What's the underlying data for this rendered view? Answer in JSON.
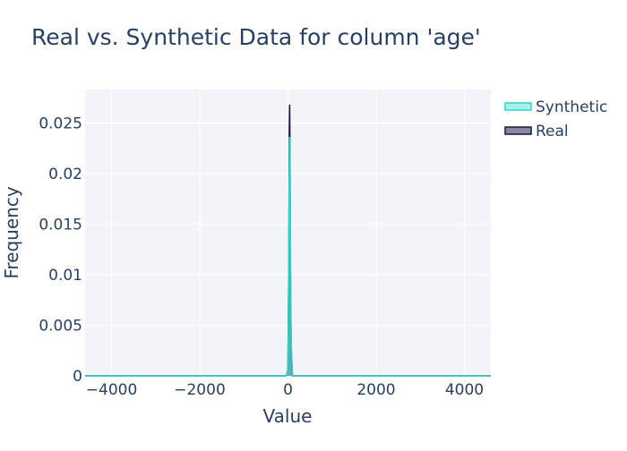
{
  "chart_data": {
    "type": "area",
    "title": "Real vs. Synthetic Data for column 'age'",
    "xlabel": "Value",
    "ylabel": "Frequency",
    "xlim": [
      -4600,
      4600
    ],
    "ylim": [
      0,
      0.0283
    ],
    "x_ticks": [
      -4000,
      -2000,
      0,
      2000,
      4000
    ],
    "x_tick_labels": [
      "−4000",
      "−2000",
      "0",
      "2000",
      "4000"
    ],
    "y_ticks": [
      0,
      0.005,
      0.01,
      0.015,
      0.02,
      0.025
    ],
    "y_tick_labels": [
      "0",
      "0.005",
      "0.01",
      "0.015",
      "0.02",
      "0.025"
    ],
    "grid": true,
    "legend_position": "top-right",
    "series": [
      {
        "name": "Real",
        "color": "#1a1447",
        "fill": "rgba(40,36,90,0.55)",
        "x": [
          -4600,
          -40,
          0,
          20,
          30,
          38,
          45,
          55,
          70,
          100,
          4600
        ],
        "y": [
          0,
          0,
          0.0005,
          0.012,
          0.024,
          0.0268,
          0.022,
          0.011,
          0.003,
          0,
          0
        ]
      },
      {
        "name": "Synthetic",
        "color": "#2fd6c8",
        "fill": "rgba(64,224,208,0.45)",
        "x": [
          -4600,
          -40,
          0,
          15,
          28,
          38,
          48,
          60,
          75,
          105,
          4600
        ],
        "y": [
          0,
          0,
          0.0004,
          0.008,
          0.019,
          0.0236,
          0.02,
          0.01,
          0.003,
          0,
          0
        ]
      }
    ],
    "legend_order": [
      "Synthetic",
      "Real"
    ]
  }
}
